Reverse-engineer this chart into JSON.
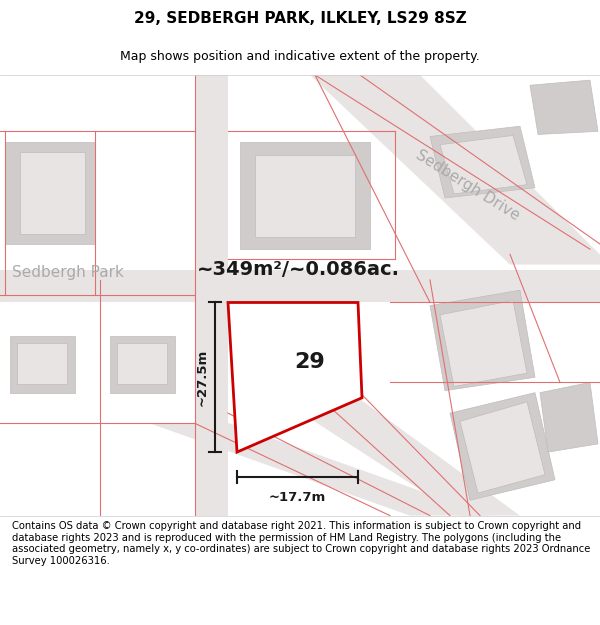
{
  "title": "29, SEDBERGH PARK, ILKLEY, LS29 8SZ",
  "subtitle": "Map shows position and indicative extent of the property.",
  "footer": "Contains OS data © Crown copyright and database right 2021. This information is subject to Crown copyright and database rights 2023 and is reproduced with the permission of HM Land Registry. The polygons (including the associated geometry, namely x, y co-ordinates) are subject to Crown copyright and database rights 2023 Ordnance Survey 100026316.",
  "area_text": "~349m²/~0.086ac.",
  "dim_width": "~17.7m",
  "dim_height": "~27.5m",
  "label_29": "29",
  "street_label_park": "Sedbergh Park",
  "street_label_drive": "Sedbergh Drive",
  "map_bg": "#f0eeee",
  "building_gray": "#d0cccc",
  "building_outline": "#c0bcbc",
  "building_inner": "#e8e4e4",
  "plot_outline_color": "#cc0000",
  "dim_line_color": "#1a1a1a",
  "street_text_color": "#aaaaaa",
  "pink_cadastral": "#e07070",
  "title_fontsize": 11,
  "subtitle_fontsize": 9,
  "footer_fontsize": 7.2,
  "area_fontsize": 14,
  "label_fontsize": 16,
  "street_fontsize": 11
}
